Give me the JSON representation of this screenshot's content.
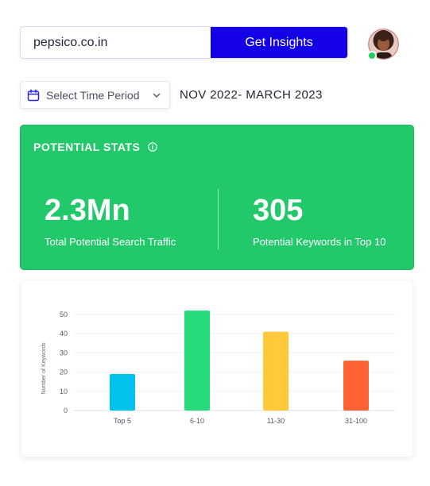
{
  "search": {
    "value": "pepsico.co.in",
    "button_label": "Get Insights"
  },
  "user": {
    "avatar_icon": "user-avatar",
    "status_color": "#1fcf62"
  },
  "period": {
    "select_label": "Select Time Period",
    "range_text": "NOV 2022- MARCH 2023"
  },
  "stats": {
    "title": "POTENTIAL STATS",
    "items": [
      {
        "value": "2.3Mn",
        "caption": "Total Potential Search Traffic"
      },
      {
        "value": "305",
        "caption": "Potential Keywords in Top 10"
      }
    ],
    "accent": "#22c96b"
  },
  "chart_data": {
    "type": "bar",
    "categories": [
      "Top 5",
      "6-10",
      "11-30",
      "31-100"
    ],
    "values": [
      19,
      52,
      41,
      26
    ],
    "colors": [
      "#00c2ec",
      "#26dc7a",
      "#ffc93a",
      "#ff6233"
    ],
    "ylabel": "Number of Keywords",
    "xlabel": "",
    "yticks": [
      0,
      10,
      20,
      30,
      40,
      50
    ],
    "ylim": [
      0,
      54
    ],
    "grid": true
  }
}
